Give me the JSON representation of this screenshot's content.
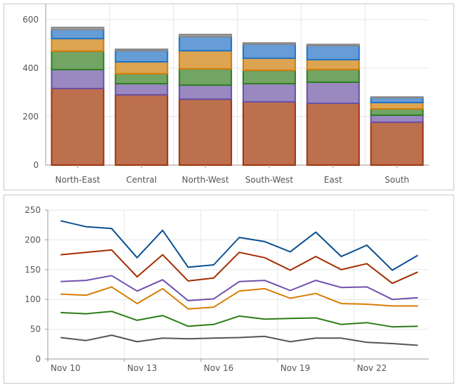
{
  "chart_data": [
    {
      "type": "bar",
      "stacked": true,
      "categories": [
        "North-East",
        "Central",
        "North-West",
        "South-West",
        "East",
        "South"
      ],
      "ylim": [
        0,
        600
      ],
      "yticks": [
        0,
        200,
        400,
        600
      ],
      "grid": true,
      "series": [
        {
          "values": [
            316,
            290,
            272,
            261,
            255,
            177
          ],
          "color": "#b5603b",
          "border": "#a0340f"
        },
        {
          "values": [
            78,
            46,
            58,
            75,
            87,
            29
          ],
          "color": "#8e7cb9",
          "border": "#6a4fa6"
        },
        {
          "values": [
            76,
            41,
            67,
            55,
            52,
            26
          ],
          "color": "#639a53",
          "border": "#2e7d23"
        },
        {
          "values": [
            52,
            49,
            75,
            50,
            41,
            26
          ],
          "color": "#d99a3e",
          "border": "#d37c09"
        },
        {
          "values": [
            37,
            46,
            58,
            58,
            58,
            20
          ],
          "color": "#5592d1",
          "border": "#1f73c8"
        },
        {
          "values": [
            9,
            6,
            9,
            5,
            5,
            3
          ],
          "color": "#999999",
          "border": "#8a8a8a"
        }
      ]
    },
    {
      "type": "line",
      "x": [
        "Nov 10",
        "Nov 11",
        "Nov 12",
        "Nov 13",
        "Nov 14",
        "Nov 15",
        "Nov 16",
        "Nov 17",
        "Nov 18",
        "Nov 19",
        "Nov 20",
        "Nov 21",
        "Nov 22",
        "Nov 23",
        "Nov 24"
      ],
      "xticks": [
        "Nov 10",
        "Nov 13",
        "Nov 16",
        "Nov 19",
        "Nov 22"
      ],
      "ylim": [
        0,
        250
      ],
      "yticks": [
        0,
        50,
        100,
        150,
        200,
        250
      ],
      "grid": true,
      "series": [
        {
          "values": [
            232,
            222,
            219,
            170,
            216,
            154,
            158,
            204,
            197,
            180,
            213,
            172,
            191,
            149,
            174
          ],
          "color": "#0a4f92"
        },
        {
          "values": [
            175,
            179,
            183,
            138,
            175,
            131,
            136,
            179,
            170,
            149,
            172,
            150,
            160,
            127,
            146
          ],
          "color": "#a32c00"
        },
        {
          "values": [
            130,
            132,
            140,
            114,
            133,
            98,
            101,
            130,
            132,
            115,
            132,
            120,
            121,
            100,
            103
          ],
          "color": "#6f4fae"
        },
        {
          "values": [
            109,
            107,
            121,
            93,
            118,
            84,
            87,
            114,
            118,
            102,
            110,
            93,
            92,
            89,
            89
          ],
          "color": "#d67d00"
        },
        {
          "values": [
            78,
            76,
            80,
            65,
            73,
            55,
            58,
            72,
            67,
            68,
            69,
            58,
            61,
            54,
            55
          ],
          "color": "#2a7d16"
        },
        {
          "values": [
            36,
            31,
            40,
            29,
            35,
            34,
            35,
            36,
            38,
            29,
            35,
            35,
            28,
            26,
            23
          ],
          "color": "#555555"
        }
      ]
    }
  ]
}
